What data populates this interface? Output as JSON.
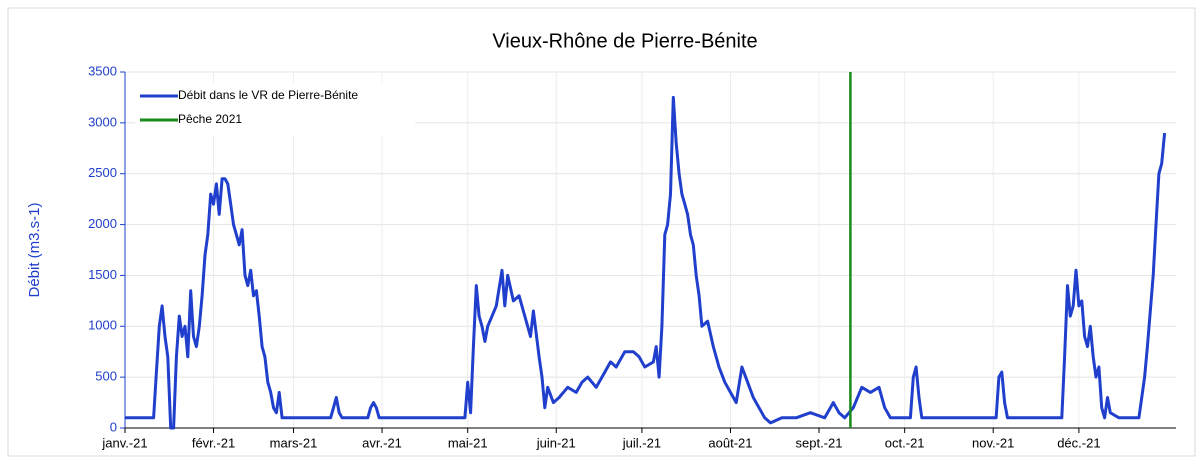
{
  "chart_data": {
    "type": "line",
    "title": "Vieux-Rhône de Pierre-Bénite",
    "y_label": "Débit (m3.s-1)",
    "xlim": [
      0,
      368
    ],
    "xticks": [
      {
        "value": 0,
        "label": "janv.-21"
      },
      {
        "value": 31,
        "label": "févr.-21"
      },
      {
        "value": 59,
        "label": "mars-21"
      },
      {
        "value": 90,
        "label": "avr.-21"
      },
      {
        "value": 120,
        "label": "mai-21"
      },
      {
        "value": 151,
        "label": "juin-21"
      },
      {
        "value": 181,
        "label": "juil.-21"
      },
      {
        "value": 212,
        "label": "août-21"
      },
      {
        "value": 243,
        "label": "sept.-21"
      },
      {
        "value": 273,
        "label": "oct.-21"
      },
      {
        "value": 304,
        "label": "nov.-21"
      },
      {
        "value": 334,
        "label": "déc.-21"
      }
    ],
    "ylim": [
      0,
      3500
    ],
    "yticks": [
      0,
      500,
      1000,
      1500,
      2000,
      2500,
      3000,
      3500
    ],
    "grid": true,
    "legend": "top-left",
    "series": [
      {
        "name": "Débit dans le VR de Pierre-Bénite",
        "color": "#1f3fcc",
        "x": [
          0,
          4,
          8,
          10,
          11,
          12,
          13,
          14,
          15,
          16,
          17,
          18,
          19,
          20,
          21,
          22,
          23,
          24,
          25,
          26,
          27,
          28,
          29,
          30,
          31,
          32,
          33,
          34,
          35,
          36,
          37,
          38,
          39,
          40,
          41,
          42,
          43,
          44,
          45,
          46,
          47,
          48,
          49,
          50,
          51,
          52,
          53,
          54,
          55,
          60,
          70,
          72,
          73,
          74,
          75,
          76,
          85,
          86,
          87,
          88,
          89,
          100,
          115,
          119,
          120,
          121,
          122,
          123,
          124,
          125,
          126,
          127,
          130,
          132,
          133,
          134,
          136,
          138,
          140,
          142,
          143,
          145,
          146,
          147,
          148,
          150,
          152,
          155,
          158,
          160,
          162,
          165,
          168,
          170,
          172,
          175,
          178,
          180,
          182,
          185,
          186,
          187,
          188,
          189,
          190,
          191,
          192,
          193,
          194,
          195,
          196,
          197,
          198,
          199,
          200,
          201,
          202,
          204,
          206,
          208,
          210,
          212,
          214,
          216,
          218,
          220,
          222,
          224,
          226,
          230,
          235,
          240,
          245,
          248,
          250,
          252,
          255,
          258,
          261,
          264,
          266,
          268,
          275,
          276,
          277,
          278,
          279,
          295,
          305,
          306,
          307,
          308,
          309,
          325,
          328,
          329,
          330,
          331,
          332,
          333,
          334,
          335,
          336,
          337,
          338,
          339,
          340,
          341,
          342,
          343,
          344,
          345,
          348,
          355,
          357,
          358,
          360,
          361,
          362,
          363,
          364
        ],
        "values": [
          100,
          100,
          100,
          100,
          550,
          1000,
          1200,
          900,
          700,
          0,
          0,
          700,
          1100,
          900,
          1000,
          700,
          1350,
          900,
          800,
          1000,
          1300,
          1700,
          1900,
          2300,
          2200,
          2400,
          2100,
          2450,
          2450,
          2400,
          2200,
          2000,
          1900,
          1800,
          1950,
          1500,
          1400,
          1550,
          1300,
          1350,
          1100,
          800,
          700,
          450,
          350,
          200,
          150,
          350,
          100,
          100,
          100,
          100,
          200,
          300,
          150,
          100,
          100,
          200,
          250,
          200,
          100,
          100,
          100,
          100,
          450,
          150,
          800,
          1400,
          1100,
          1000,
          850,
          1000,
          1200,
          1550,
          1200,
          1500,
          1250,
          1300,
          1100,
          900,
          1150,
          700,
          500,
          200,
          400,
          250,
          300,
          400,
          350,
          450,
          500,
          400,
          550,
          650,
          600,
          750,
          750,
          700,
          600,
          650,
          800,
          500,
          1000,
          1900,
          2000,
          2300,
          3250,
          2800,
          2500,
          2300,
          2200,
          2100,
          1900,
          1800,
          1500,
          1300,
          1000,
          1050,
          800,
          600,
          450,
          350,
          250,
          600,
          450,
          300,
          200,
          100,
          50,
          100,
          100,
          150,
          100,
          250,
          150,
          100,
          200,
          400,
          350,
          400,
          200,
          100,
          100,
          500,
          600,
          300,
          100,
          100,
          100,
          500,
          550,
          250,
          100,
          100,
          100,
          700,
          1400,
          1100,
          1200,
          1550,
          1200,
          1250,
          900,
          800,
          1000,
          700,
          500,
          600,
          200,
          100,
          300,
          150,
          100,
          100,
          500,
          800,
          1500,
          2000,
          2500,
          2600,
          2900
        ]
      },
      {
        "name": "Pêche 2021",
        "color": "#1a8a1a",
        "x": [
          254,
          254
        ],
        "values": [
          0,
          3500
        ]
      }
    ]
  }
}
